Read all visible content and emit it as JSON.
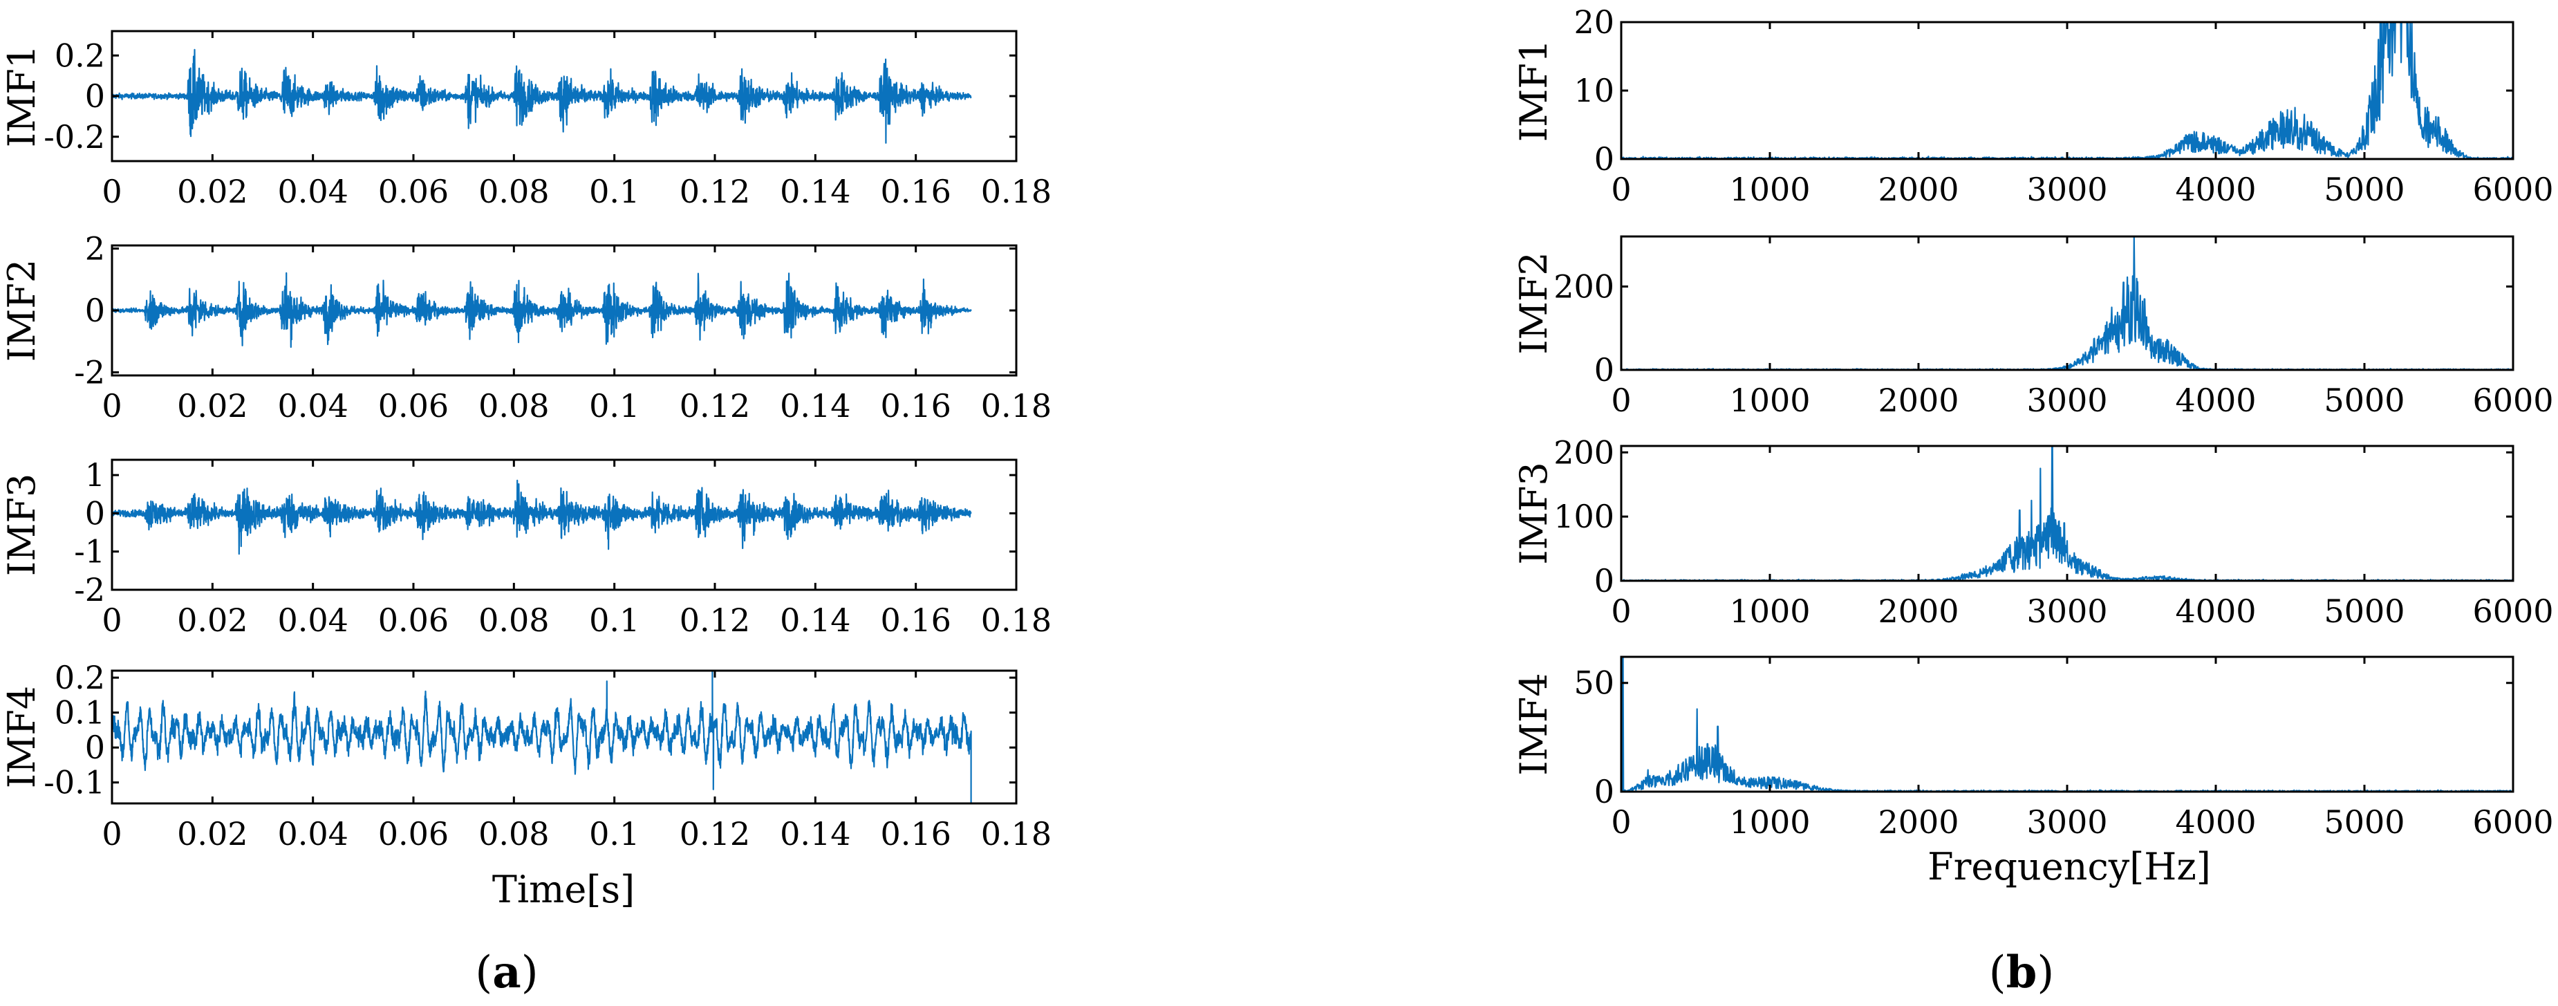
{
  "panels": {
    "a": {
      "label": "a",
      "xlabel": "Time[s]"
    },
    "b": {
      "label": "b",
      "xlabel": "Frequency[Hz]"
    }
  },
  "colors": {
    "trace": "#0a72bd",
    "axes": "#000000"
  },
  "chart_data": [
    {
      "type": "line",
      "panel": "a",
      "ylabel": "IMF1",
      "xlim": [
        0,
        0.18
      ],
      "ylim": [
        -0.32,
        0.32
      ],
      "xticks": [
        0,
        0.02,
        0.04,
        0.06,
        0.08,
        0.1,
        0.12,
        0.14,
        0.16,
        0.18
      ],
      "xtick_labels": [
        "0",
        "0.02",
        "0.04",
        "0.06",
        "0.08",
        "0.1",
        "0.12",
        "0.14",
        "0.16",
        "0.18"
      ],
      "yticks": [
        -0.2,
        0,
        0.2
      ],
      "ytick_labels": [
        "-0.2",
        "0",
        "0.2"
      ],
      "signal": {
        "kind": "bursts",
        "duration": 0.171,
        "burst_width": 0.0026,
        "baseline": 0.018,
        "burst_times": [
          0.0158,
          0.0256,
          0.0344,
          0.0428,
          0.053,
          0.0613,
          0.0711,
          0.0807,
          0.0896,
          0.0985,
          0.1078,
          0.1168,
          0.1254,
          0.1344,
          0.1443,
          0.1535,
          0.1615
        ],
        "burst_amplitudes": [
          0.32,
          0.2,
          0.22,
          0.1,
          0.22,
          0.12,
          0.2,
          0.24,
          0.21,
          0.16,
          0.21,
          0.14,
          0.2,
          0.15,
          0.19,
          0.25,
          0.1
        ]
      }
    },
    {
      "type": "line",
      "panel": "a",
      "ylabel": "IMF2",
      "xlim": [
        0,
        0.18
      ],
      "ylim": [
        -2.1,
        2.1
      ],
      "xticks": [
        0,
        0.02,
        0.04,
        0.06,
        0.08,
        0.1,
        0.12,
        0.14,
        0.16,
        0.18
      ],
      "xtick_labels": [
        "0",
        "0.02",
        "0.04",
        "0.06",
        "0.08",
        "0.1",
        "0.12",
        "0.14",
        "0.16",
        "0.18"
      ],
      "yticks": [
        -2,
        0,
        2
      ],
      "ytick_labels": [
        "-2",
        "0",
        "2"
      ],
      "signal": {
        "kind": "bursts",
        "duration": 0.171,
        "burst_width": 0.0022,
        "baseline": 0.08,
        "burst_times": [
          0.0074,
          0.0158,
          0.0256,
          0.0344,
          0.0428,
          0.053,
          0.0613,
          0.0711,
          0.0807,
          0.0896,
          0.0985,
          0.1078,
          0.1168,
          0.1254,
          0.1344,
          0.1443,
          0.1535,
          0.1615
        ],
        "burst_amplitudes": [
          1.1,
          1.5,
          1.4,
          2.0,
          1.3,
          1.5,
          1.1,
          1.4,
          1.8,
          1.2,
          2.1,
          1.4,
          1.3,
          1.5,
          1.6,
          1.5,
          1.4,
          1.3
        ]
      }
    },
    {
      "type": "line",
      "panel": "a",
      "ylabel": "IMF3",
      "xlim": [
        0,
        0.18
      ],
      "ylim": [
        -2,
        1.4
      ],
      "xticks": [
        0,
        0.02,
        0.04,
        0.06,
        0.08,
        0.1,
        0.12,
        0.14,
        0.16,
        0.18
      ],
      "xtick_labels": [
        "0",
        "0.02",
        "0.04",
        "0.06",
        "0.08",
        "0.1",
        "0.12",
        "0.14",
        "0.16",
        "0.18"
      ],
      "yticks": [
        -2,
        -1,
        0,
        1
      ],
      "ytick_labels": [
        "-2",
        "-1",
        "0",
        "1"
      ],
      "signal": {
        "kind": "bursts",
        "duration": 0.171,
        "burst_width": 0.0028,
        "baseline": 0.12,
        "burst_times": [
          0.0074,
          0.0158,
          0.0256,
          0.0344,
          0.0428,
          0.053,
          0.0613,
          0.0711,
          0.0807,
          0.0896,
          0.0985,
          0.1078,
          0.1168,
          0.1254,
          0.1344,
          0.1443,
          0.1535,
          0.1615
        ],
        "burst_amplitudes": [
          0.6,
          0.8,
          1.3,
          1.0,
          0.9,
          0.9,
          0.9,
          0.8,
          1.0,
          0.9,
          1.0,
          0.9,
          0.9,
          1.1,
          0.8,
          0.8,
          0.9,
          0.7
        ]
      }
    },
    {
      "type": "line",
      "panel": "a",
      "ylabel": "IMF4",
      "xlim": [
        0,
        0.18
      ],
      "ylim": [
        -0.16,
        0.22
      ],
      "xticks": [
        0,
        0.02,
        0.04,
        0.06,
        0.08,
        0.1,
        0.12,
        0.14,
        0.16,
        0.18
      ],
      "xtick_labels": [
        "0",
        "0.02",
        "0.04",
        "0.06",
        "0.08",
        "0.1",
        "0.12",
        "0.14",
        "0.16",
        "0.18"
      ],
      "yticks": [
        -0.1,
        0,
        0.1,
        0.2
      ],
      "ytick_labels": [
        "-0.1",
        "0",
        "0.1",
        "0.2"
      ],
      "signal": {
        "kind": "lowfreq",
        "duration": 0.171,
        "offset": 0.04,
        "amplitude": 0.075,
        "spikes": [
          [
            0.1195,
            0.22
          ],
          [
            0.1197,
            -0.12
          ],
          [
            0.0985,
            0.19
          ],
          [
            0.171,
            -0.16
          ]
        ]
      }
    },
    {
      "type": "line",
      "panel": "b",
      "ylabel": "IMF1",
      "xlim": [
        0,
        6000
      ],
      "ylim": [
        0,
        20
      ],
      "xticks": [
        0,
        1000,
        2000,
        3000,
        4000,
        5000,
        6000
      ],
      "xtick_labels": [
        "0",
        "1000",
        "2000",
        "3000",
        "4000",
        "5000",
        "6000"
      ],
      "yticks": [
        0,
        10,
        20
      ],
      "ytick_labels": [
        "0",
        "10",
        "20"
      ],
      "spectrum": {
        "noise": 0.35,
        "bands": [
          [
            3900,
            200,
            2.5
          ],
          [
            4500,
            250,
            4.5
          ],
          [
            5150,
            130,
            13
          ],
          [
            5250,
            90,
            17
          ],
          [
            5450,
            140,
            4
          ]
        ],
        "peaks": [
          [
            5230,
            20
          ],
          [
            5100,
            14
          ],
          [
            4450,
            6
          ],
          [
            3800,
            3.5
          ]
        ]
      }
    },
    {
      "type": "line",
      "panel": "b",
      "ylabel": "IMF2",
      "xlim": [
        0,
        6000
      ],
      "ylim": [
        0,
        320
      ],
      "xticks": [
        0,
        1000,
        2000,
        3000,
        4000,
        5000,
        6000
      ],
      "xtick_labels": [
        "0",
        "1000",
        "2000",
        "3000",
        "4000",
        "5000",
        "6000"
      ],
      "yticks": [
        0,
        200
      ],
      "ytick_labels": [
        "0",
        "200"
      ],
      "spectrum": {
        "noise": 3,
        "bands": [
          [
            3300,
            140,
            60
          ],
          [
            3450,
            90,
            120
          ],
          [
            3650,
            150,
            45
          ],
          [
            3200,
            180,
            20
          ]
        ],
        "peaks": [
          [
            3450,
            320
          ],
          [
            3380,
            210
          ],
          [
            3520,
            170
          ],
          [
            3300,
            150
          ]
        ]
      }
    },
    {
      "type": "line",
      "panel": "b",
      "ylabel": "IMF3",
      "xlim": [
        0,
        6000
      ],
      "ylim": [
        0,
        210
      ],
      "xticks": [
        0,
        1000,
        2000,
        3000,
        4000,
        5000,
        6000
      ],
      "xtick_labels": [
        "0",
        "1000",
        "2000",
        "3000",
        "4000",
        "5000",
        "6000"
      ],
      "yticks": [
        0,
        100,
        200
      ],
      "ytick_labels": [
        "0",
        "100",
        "200"
      ],
      "spectrum": {
        "noise": 2,
        "bands": [
          [
            2700,
            170,
            40
          ],
          [
            2900,
            110,
            55
          ],
          [
            3100,
            160,
            18
          ],
          [
            2450,
            200,
            10
          ],
          [
            3600,
            200,
            4
          ]
        ],
        "peaks": [
          [
            2900,
            210
          ],
          [
            2820,
            175
          ],
          [
            2760,
            125
          ],
          [
            2680,
            110
          ],
          [
            2980,
            90
          ]
        ]
      }
    },
    {
      "type": "line",
      "panel": "b",
      "ylabel": "IMF4",
      "xlim": [
        0,
        6000
      ],
      "ylim": [
        0,
        62
      ],
      "xticks": [
        0,
        1000,
        2000,
        3000,
        4000,
        5000,
        6000
      ],
      "xtick_labels": [
        "0",
        "1000",
        "2000",
        "3000",
        "4000",
        "5000",
        "6000"
      ],
      "yticks": [
        0,
        50
      ],
      "ytick_labels": [
        "0",
        "50"
      ],
      "spectrum": {
        "noise": 0.8,
        "bands": [
          [
            600,
            150,
            12
          ],
          [
            400,
            150,
            6
          ],
          [
            1000,
            300,
            4
          ],
          [
            200,
            100,
            4
          ]
        ],
        "peaks": [
          [
            10,
            62
          ],
          [
            510,
            38
          ],
          [
            650,
            30
          ],
          [
            580,
            22
          ],
          [
            180,
            10
          ]
        ]
      }
    }
  ]
}
